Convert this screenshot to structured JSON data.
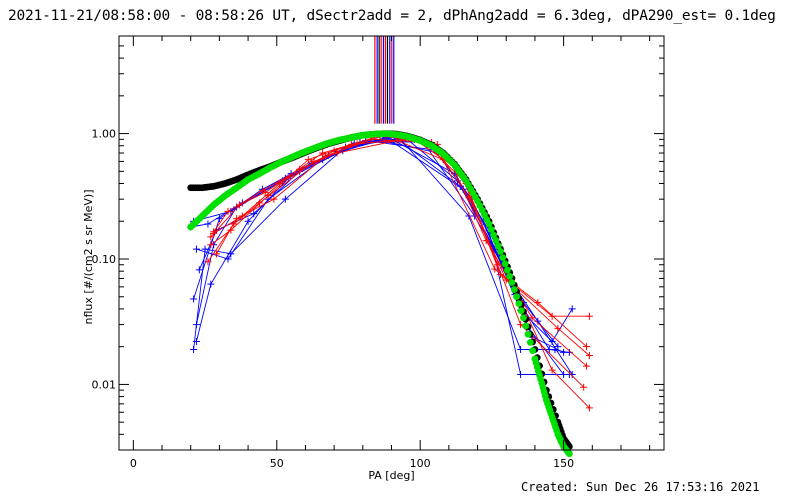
{
  "header": {
    "title": "2021-11-21/08:58:00 - 08:58:26 UT, dSectr2add = 2, dPhAng2add = 6.3deg, dPA290_est=  0.1deg"
  },
  "footer": {
    "created": "Created: Sun Dec 26 17:53:16 2021"
  },
  "colors": {
    "red": "#ff0000",
    "blue": "#0000ff",
    "green": "#00e000",
    "black": "#000000"
  },
  "chart_data": {
    "type": "line",
    "xlabel": "PA [deg]",
    "ylabel": "nflux [#/(cm2 s sr MeV)]",
    "xlim": [
      -5,
      185
    ],
    "ylim": [
      0.003,
      6
    ],
    "yscale": "log",
    "xticks": [
      0,
      50,
      100,
      150
    ],
    "yticks": [
      {
        "value": 0.01,
        "label": "0.01"
      },
      {
        "value": 0.1,
        "label": "0.10"
      },
      {
        "value": 1,
        "label": "1.00"
      }
    ],
    "grid": false,
    "vertical_lines": {
      "x": [
        84.2,
        85.0,
        85.7,
        86.4,
        87.2,
        87.9,
        88.6,
        89.4,
        90.1,
        90.8
      ],
      "colors": [
        "red",
        "blue",
        "black",
        "red",
        "blue",
        "red",
        "black",
        "blue",
        "red",
        "blue"
      ],
      "y_from": 1.2,
      "y_to": 6
    },
    "model_green": {
      "x": [
        20,
        24,
        28,
        32,
        36,
        40,
        44,
        48,
        52,
        56,
        60,
        64,
        68,
        72,
        76,
        80,
        84,
        88,
        92,
        96,
        100,
        104,
        108,
        112,
        116,
        120,
        124,
        128,
        132,
        136,
        140,
        142,
        144,
        146,
        148,
        150,
        152
      ],
      "y": [
        0.18,
        0.22,
        0.27,
        0.32,
        0.37,
        0.43,
        0.48,
        0.54,
        0.6,
        0.66,
        0.72,
        0.78,
        0.84,
        0.89,
        0.93,
        0.97,
        0.99,
        1.0,
        0.98,
        0.94,
        0.88,
        0.8,
        0.69,
        0.56,
        0.42,
        0.29,
        0.19,
        0.115,
        0.065,
        0.034,
        0.016,
        0.011,
        0.0075,
        0.0055,
        0.004,
        0.0032,
        0.0028
      ]
    },
    "model_black": {
      "x": [
        20,
        24,
        28,
        32,
        36,
        40,
        44,
        48,
        52,
        56,
        60,
        64,
        68,
        72,
        76,
        80,
        84,
        88,
        92,
        96,
        100,
        104,
        108,
        112,
        116,
        120,
        124,
        128,
        132,
        136,
        140,
        144,
        148,
        150,
        152
      ],
      "y": [
        0.37,
        0.37,
        0.38,
        0.4,
        0.43,
        0.47,
        0.51,
        0.55,
        0.6,
        0.65,
        0.71,
        0.77,
        0.83,
        0.88,
        0.93,
        0.97,
        0.99,
        1.0,
        0.99,
        0.95,
        0.89,
        0.81,
        0.7,
        0.57,
        0.43,
        0.3,
        0.2,
        0.12,
        0.07,
        0.038,
        0.019,
        0.009,
        0.005,
        0.0037,
        0.0032
      ]
    },
    "series": [
      {
        "color": "blue",
        "x": [
          21,
          34,
          53,
          71,
          88,
          115,
          129,
          135,
          146,
          153
        ],
        "y": [
          0.2,
          0.24,
          0.44,
          0.72,
          0.93,
          0.36,
          0.085,
          0.039,
          0.022,
          0.04
        ]
      },
      {
        "color": "blue",
        "x": [
          21,
          30,
          45,
          62,
          81,
          105,
          118,
          131,
          141,
          153
        ],
        "y": [
          0.048,
          0.21,
          0.36,
          0.58,
          0.88,
          0.74,
          0.3,
          0.07,
          0.032,
          0.012
        ]
      },
      {
        "color": "blue",
        "x": [
          22,
          33,
          47,
          66,
          84,
          109,
          121,
          133,
          145,
          152
        ],
        "y": [
          0.12,
          0.1,
          0.3,
          0.62,
          0.9,
          0.68,
          0.26,
          0.052,
          0.019,
          0.018
        ]
      },
      {
        "color": "blue",
        "x": [
          22,
          27,
          40,
          54,
          73,
          91,
          114,
          126,
          137,
          150
        ],
        "y": [
          0.022,
          0.063,
          0.2,
          0.44,
          0.73,
          0.94,
          0.38,
          0.12,
          0.03,
          0.012
        ]
      },
      {
        "color": "blue",
        "x": [
          21,
          25,
          34,
          53,
          74,
          93,
          117,
          135,
          147
        ],
        "y": [
          0.019,
          0.12,
          0.11,
          0.3,
          0.78,
          0.91,
          0.22,
          0.019,
          0.019
        ]
      },
      {
        "color": "blue",
        "x": [
          23,
          29,
          42,
          58,
          77,
          95,
          113,
          124,
          135,
          152
        ],
        "y": [
          0.082,
          0.17,
          0.23,
          0.5,
          0.84,
          0.92,
          0.42,
          0.17,
          0.012,
          0.012
        ]
      },
      {
        "color": "blue",
        "x": [
          22,
          28,
          36,
          52,
          68,
          89,
          112,
          122,
          139,
          150
        ],
        "y": [
          0.03,
          0.13,
          0.26,
          0.42,
          0.67,
          0.93,
          0.48,
          0.2,
          0.024,
          0.018
        ]
      },
      {
        "color": "blue",
        "x": [
          20,
          26,
          38,
          55,
          79,
          101,
          119,
          136,
          148
        ],
        "y": [
          0.18,
          0.19,
          0.28,
          0.48,
          0.85,
          0.86,
          0.22,
          0.045,
          0.02
        ]
      },
      {
        "color": "red",
        "x": [
          27,
          37,
          46,
          66,
          86,
          106,
          121,
          135,
          146,
          159
        ],
        "y": [
          0.15,
          0.27,
          0.34,
          0.7,
          0.96,
          0.82,
          0.26,
          0.046,
          0.013,
          0.0065
        ]
      },
      {
        "color": "red",
        "x": [
          28,
          33,
          45,
          58,
          71,
          92,
          108,
          126,
          141,
          158
        ],
        "y": [
          0.165,
          0.24,
          0.35,
          0.52,
          0.7,
          0.88,
          0.62,
          0.083,
          0.045,
          0.02
        ]
      },
      {
        "color": "red",
        "x": [
          26,
          35,
          44,
          63,
          78,
          98,
          114,
          128,
          146,
          159
        ],
        "y": [
          0.095,
          0.19,
          0.28,
          0.6,
          0.83,
          0.9,
          0.5,
          0.075,
          0.035,
          0.035
        ]
      },
      {
        "color": "red",
        "x": [
          29,
          36,
          49,
          67,
          83,
          104,
          117,
          130,
          148,
          159
        ],
        "y": [
          0.11,
          0.21,
          0.3,
          0.66,
          0.9,
          0.85,
          0.31,
          0.068,
          0.028,
          0.017
        ]
      },
      {
        "color": "red",
        "x": [
          27,
          34,
          47,
          61,
          76,
          97,
          110,
          123,
          139,
          158
        ],
        "y": [
          0.13,
          0.17,
          0.32,
          0.62,
          0.82,
          0.91,
          0.64,
          0.14,
          0.034,
          0.014
        ]
      },
      {
        "color": "red",
        "x": [
          28,
          38,
          51,
          70,
          88,
          102,
          116,
          127,
          135,
          157
        ],
        "y": [
          0.16,
          0.22,
          0.4,
          0.73,
          0.97,
          0.84,
          0.4,
          0.09,
          0.03,
          0.0095
        ]
      }
    ]
  }
}
